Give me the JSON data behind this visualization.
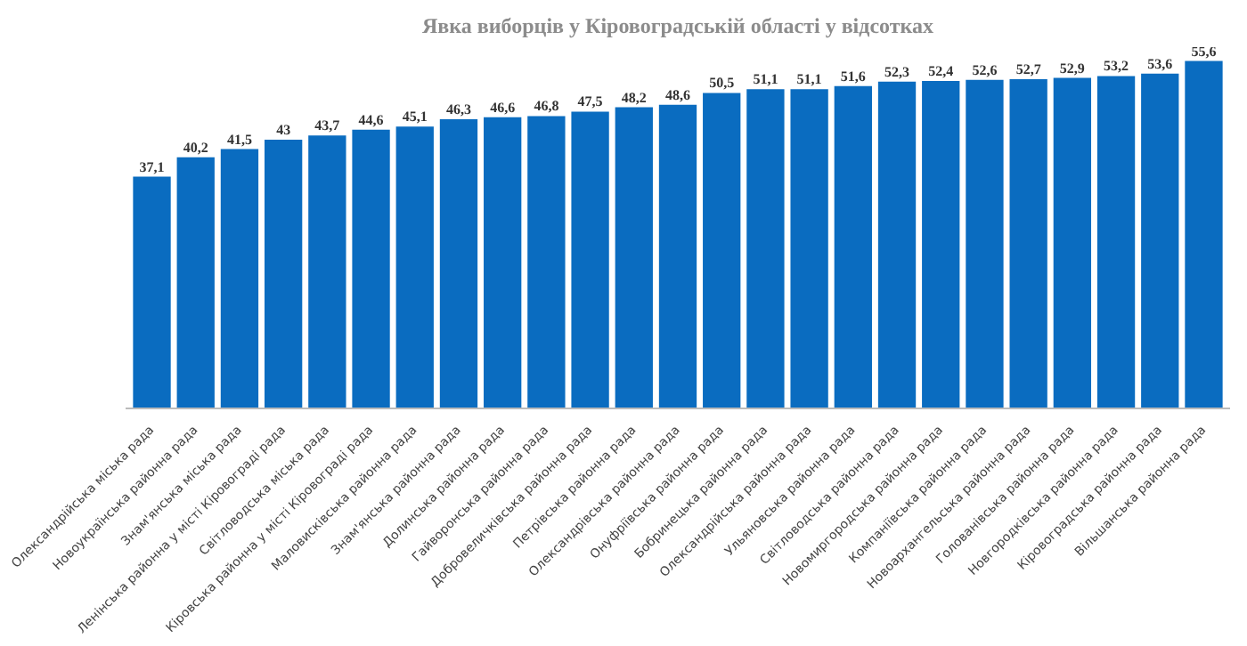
{
  "chart_data": {
    "type": "bar",
    "title": "Явка виборців у Кіровоградській області у відсотках",
    "categories": [
      "Олександрійська міська рада",
      "Новоукраїнська районна рада",
      "Знам'янська міська рада",
      "Ленінська районна у місті Кіровограді рада",
      "Світловодська міська рада",
      "Кіровська районна у місті Кіровограді рада",
      "Маловисківська районна рада",
      "Знам'янська районна рада",
      "Долинська районна рада",
      "Гайворонська районна рада",
      "Добровеличківська районна рада",
      "Петрівська районна рада",
      "Олександрівська районна рада",
      "Онуфріївська районна рада",
      "Бобринецька районна рада",
      "Олександрійська районна рада",
      "Ульяновська районна рада",
      "Світловодська районна рада",
      "Новомиргородська районна рада",
      "Компаніївська районна рада",
      "Новоархангельська районна рада",
      "Голованівська районна рада",
      "Новгородківська районна рада",
      "Кіровоградська районна рада",
      "Вільшанська районна рада"
    ],
    "values": [
      37.1,
      40.2,
      41.5,
      43,
      43.7,
      44.6,
      45.1,
      46.3,
      46.6,
      46.8,
      47.5,
      48.2,
      48.6,
      50.5,
      51.1,
      51.1,
      51.6,
      52.3,
      52.4,
      52.6,
      52.7,
      52.9,
      53.2,
      53.6,
      55.6
    ],
    "value_labels": [
      "37,1",
      "40,2",
      "41,5",
      "43",
      "43,7",
      "44,6",
      "45,1",
      "46,3",
      "46,6",
      "46,8",
      "47,5",
      "48,2",
      "48,6",
      "50,5",
      "51,1",
      "51,1",
      "51,6",
      "52,3",
      "52,4",
      "52,6",
      "52,7",
      "52,9",
      "53,2",
      "53,6",
      "55,6"
    ],
    "color": "#0a6cc0"
  }
}
